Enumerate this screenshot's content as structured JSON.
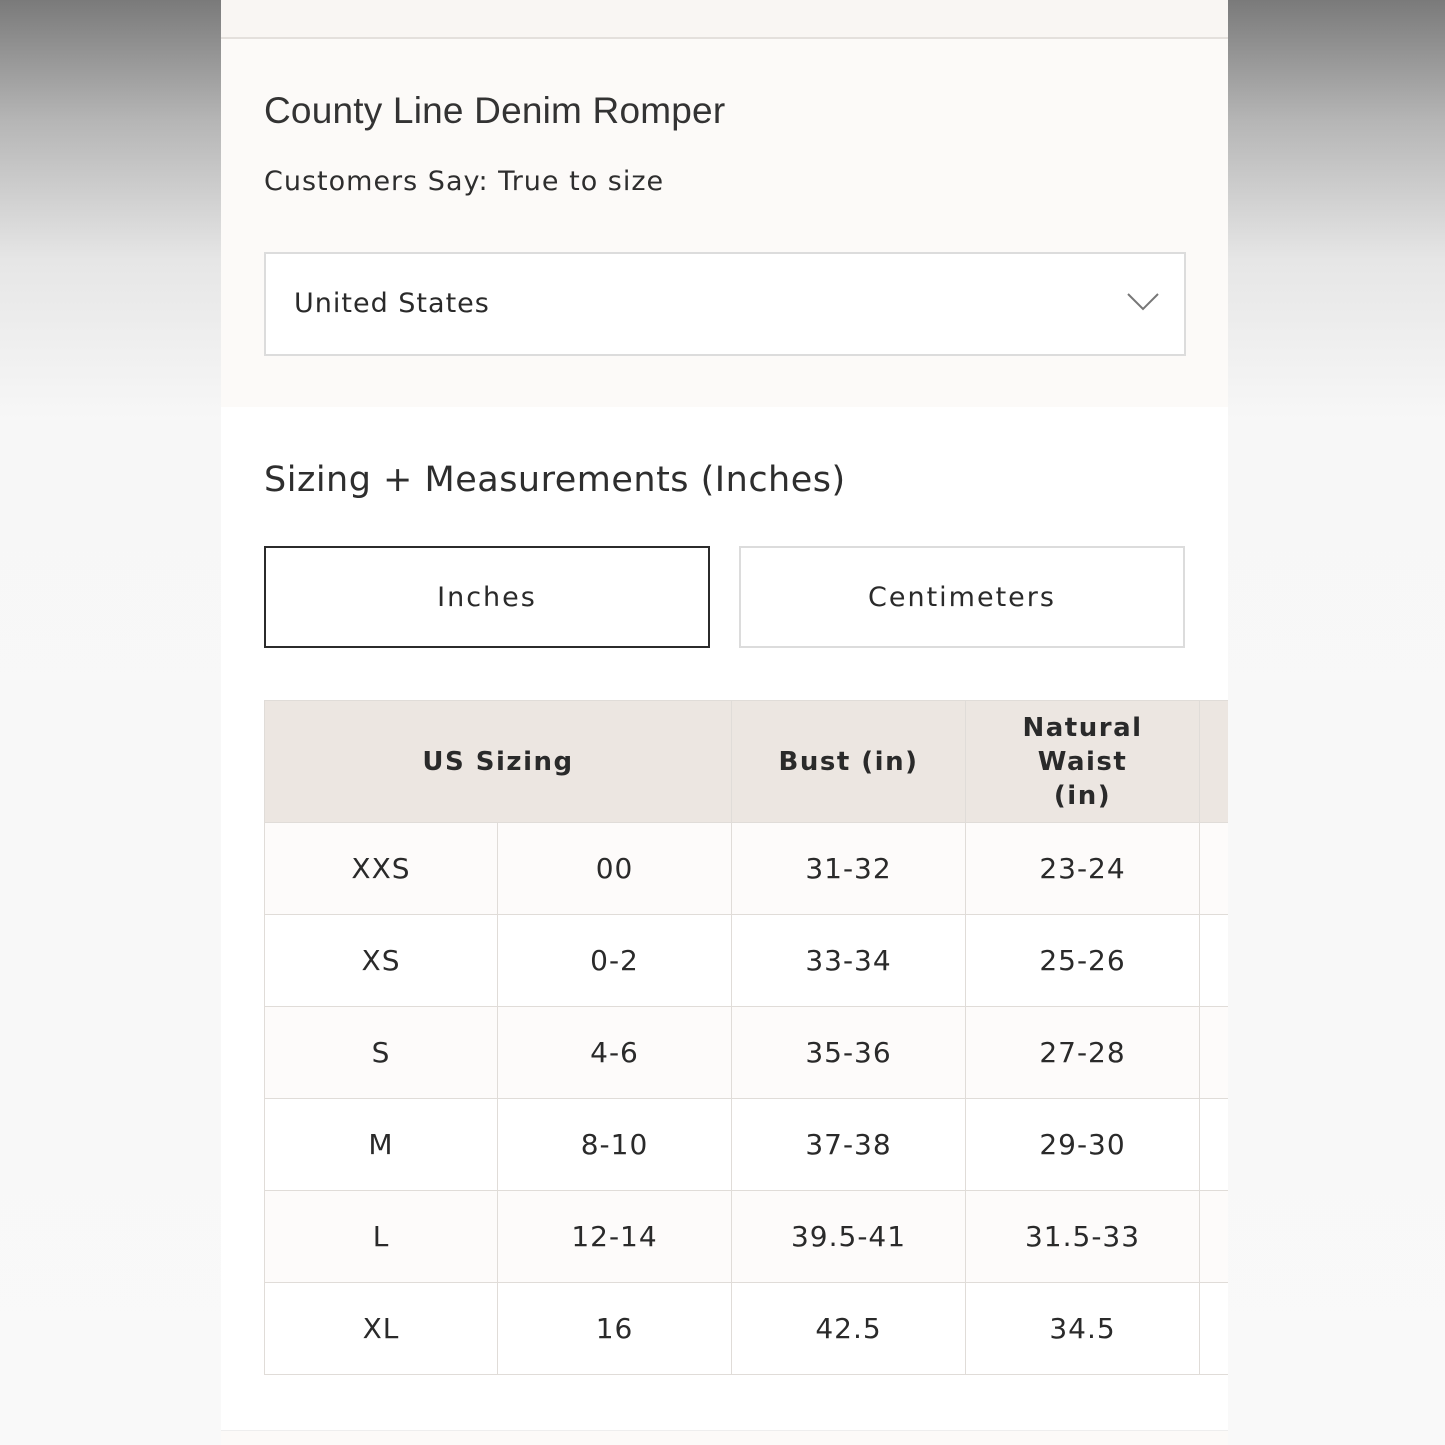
{
  "product": {
    "title": "County Line Denim Romper",
    "customers_say": "Customers Say: True to size"
  },
  "region_select": {
    "value": "United States",
    "icon": "chevron-down-icon"
  },
  "sizing": {
    "heading": "Sizing + Measurements (Inches)",
    "unit_tabs": [
      {
        "label": "Inches",
        "active": true
      },
      {
        "label": "Centimeters",
        "active": false
      }
    ],
    "table": {
      "headers": [
        "US Sizing",
        "Bust (in)",
        "Natural Waist (in)"
      ],
      "rows": [
        [
          "XXS",
          "00",
          "31-32",
          "23-24"
        ],
        [
          "XS",
          "0-2",
          "33-34",
          "25-26"
        ],
        [
          "S",
          "4-6",
          "35-36",
          "27-28"
        ],
        [
          "M",
          "8-10",
          "37-38",
          "29-30"
        ],
        [
          "L",
          "12-14",
          "39.5-41",
          "31.5-33"
        ],
        [
          "XL",
          "16",
          "42.5",
          "34.5"
        ]
      ]
    }
  },
  "colors": {
    "header_bg": "#ece6e1",
    "active_border": "#2b2b2b"
  }
}
